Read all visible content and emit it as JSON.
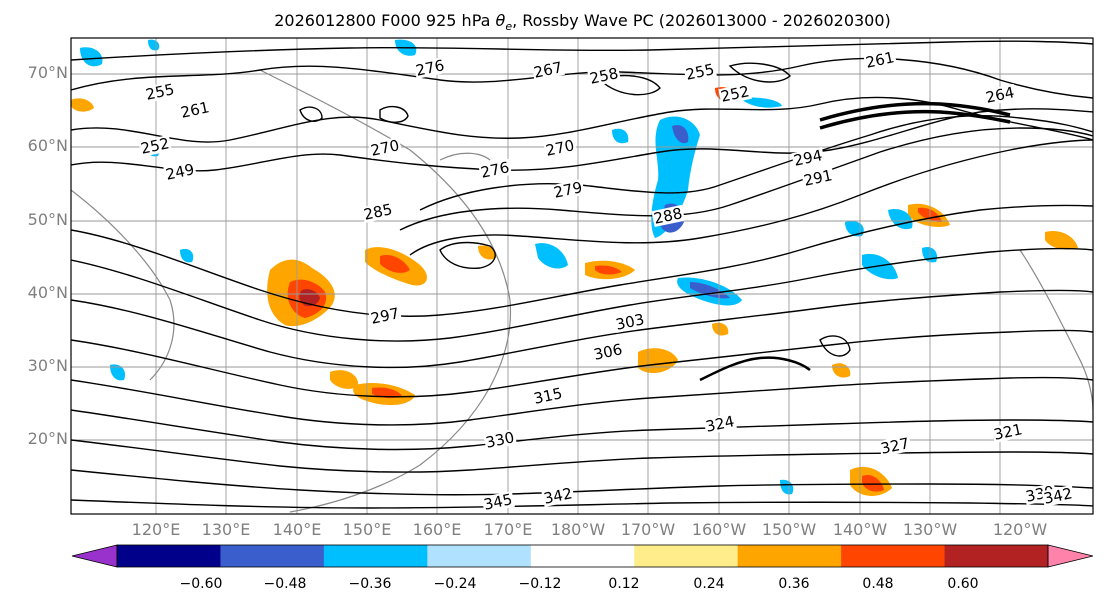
{
  "title": {
    "run": "2026012800 F000 925 hPa",
    "symbol": "θ",
    "symbol_sub": "e",
    "rest": ", Rossby Wave PC (2026013000 - 2026020300)"
  },
  "axes": {
    "lat_labels": [
      "70°N",
      "60°N",
      "50°N",
      "40°N",
      "30°N",
      "20°N"
    ],
    "lon_labels": [
      "120°E",
      "130°E",
      "140°E",
      "150°E",
      "160°E",
      "170°E",
      "180°W",
      "170°W",
      "160°W",
      "150°W",
      "140°W",
      "130°W",
      "120°W"
    ]
  },
  "colorbar": {
    "tick_labels": [
      "−0.60",
      "−0.48",
      "−0.36",
      "−0.24",
      "−0.12",
      "0.12",
      "0.24",
      "0.36",
      "0.48",
      "0.60"
    ],
    "colors": [
      "#9932cc",
      "#00008b",
      "#3a5fcd",
      "#00bfff",
      "#b0e2ff",
      "#ffffff",
      "#ffec8b",
      "#ffa500",
      "#ff4500",
      "#b22222",
      "#ff82ab"
    ]
  },
  "contour_labels": [
    "255",
    "252",
    "249",
    "261",
    "276",
    "267",
    "258",
    "255",
    "252",
    "261",
    "264",
    "270",
    "276",
    "270",
    "279",
    "285",
    "288",
    "294",
    "291",
    "297",
    "303",
    "306",
    "315",
    "330",
    "327",
    "321",
    "342",
    "345",
    "339",
    "342",
    "324"
  ]
}
